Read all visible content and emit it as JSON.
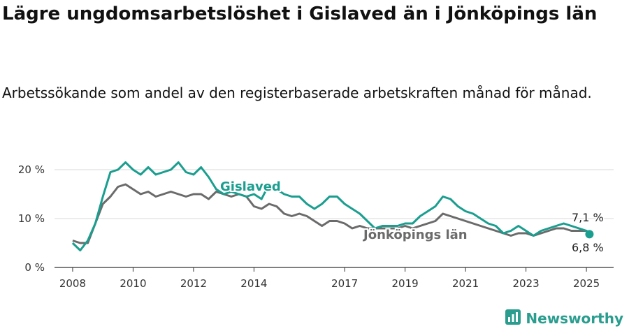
{
  "title": "Lägre ungdomsarbetslöshet i Gislaved än i Jönköpings län",
  "subtitle": "Arbetssökande som andel av den registerbaserade arbetskraften månad för månad.",
  "brand": {
    "name": "Newsworthy",
    "icon": "bar-chart-logo-icon"
  },
  "colors": {
    "gislaved": "#1a9e8f",
    "lan": "#6b6b6b",
    "grid": "#d9d9d9",
    "axis": "#333333"
  },
  "chart_data": {
    "type": "line",
    "title": "Lägre ungdomsarbetslöshet i Gislaved än i Jönköpings län",
    "ylabel": "",
    "xlabel": "",
    "ylim": [
      0,
      20
    ],
    "yticks": [
      0,
      10,
      20
    ],
    "ytick_labels": [
      "0 %",
      "10 %",
      "20 %"
    ],
    "xticks": [
      2008,
      2010,
      2012,
      2014,
      2017,
      2019,
      2021,
      2023,
      2025
    ],
    "xtick_labels": [
      "2008",
      "2010",
      "2012",
      "2014",
      "2017",
      "2019",
      "2021",
      "2023",
      "2025"
    ],
    "grid": true,
    "series": [
      {
        "name": "Gislaved",
        "end_label": "6,8 %",
        "x": [
          2008.0,
          2008.25,
          2008.5,
          2008.75,
          2009.0,
          2009.25,
          2009.5,
          2009.75,
          2010.0,
          2010.25,
          2010.5,
          2010.75,
          2011.0,
          2011.25,
          2011.5,
          2011.75,
          2012.0,
          2012.25,
          2012.5,
          2012.75,
          2013.0,
          2013.25,
          2013.5,
          2013.75,
          2014.0,
          2014.25,
          2014.5,
          2014.75,
          2015.0,
          2015.25,
          2015.5,
          2015.75,
          2016.0,
          2016.25,
          2016.5,
          2016.75,
          2017.0,
          2017.25,
          2017.5,
          2017.75,
          2018.0,
          2018.25,
          2018.5,
          2018.75,
          2019.0,
          2019.25,
          2019.5,
          2019.75,
          2020.0,
          2020.25,
          2020.5,
          2020.75,
          2021.0,
          2021.25,
          2021.5,
          2021.75,
          2022.0,
          2022.25,
          2022.5,
          2022.75,
          2023.0,
          2023.25,
          2023.5,
          2023.75,
          2024.0,
          2024.25,
          2024.5,
          2024.75,
          2025.0,
          2025.1
        ],
        "values": [
          5.0,
          3.5,
          5.5,
          9.0,
          14.5,
          19.5,
          20.0,
          21.5,
          20.0,
          19.0,
          20.5,
          19.0,
          19.5,
          20.0,
          21.5,
          19.5,
          19.0,
          20.5,
          18.5,
          16.0,
          15.0,
          15.5,
          15.0,
          14.5,
          15.0,
          14.0,
          17.0,
          16.0,
          15.0,
          14.5,
          14.5,
          13.0,
          12.0,
          13.0,
          14.5,
          14.5,
          13.0,
          12.0,
          11.0,
          9.5,
          8.0,
          8.5,
          8.5,
          8.5,
          9.0,
          9.0,
          10.5,
          11.5,
          12.5,
          14.5,
          14.0,
          12.5,
          11.5,
          11.0,
          10.0,
          9.0,
          8.5,
          7.0,
          7.5,
          8.5,
          7.5,
          6.5,
          7.5,
          8.0,
          8.5,
          9.0,
          8.5,
          8.0,
          7.5,
          6.8
        ]
      },
      {
        "name": "Jönköpings län",
        "end_label": "7,1 %",
        "x": [
          2008.0,
          2008.25,
          2008.5,
          2008.75,
          2009.0,
          2009.25,
          2009.5,
          2009.75,
          2010.0,
          2010.25,
          2010.5,
          2010.75,
          2011.0,
          2011.25,
          2011.5,
          2011.75,
          2012.0,
          2012.25,
          2012.5,
          2012.75,
          2013.0,
          2013.25,
          2013.5,
          2013.75,
          2014.0,
          2014.25,
          2014.5,
          2014.75,
          2015.0,
          2015.25,
          2015.5,
          2015.75,
          2016.0,
          2016.25,
          2016.5,
          2016.75,
          2017.0,
          2017.25,
          2017.5,
          2017.75,
          2018.0,
          2018.25,
          2018.5,
          2018.75,
          2019.0,
          2019.25,
          2019.5,
          2019.75,
          2020.0,
          2020.25,
          2020.5,
          2020.75,
          2021.0,
          2021.25,
          2021.5,
          2021.75,
          2022.0,
          2022.25,
          2022.5,
          2022.75,
          2023.0,
          2023.25,
          2023.5,
          2023.75,
          2024.0,
          2024.25,
          2024.5,
          2024.75,
          2025.0,
          2025.1
        ],
        "values": [
          5.5,
          5.0,
          5.0,
          9.0,
          13.0,
          14.5,
          16.5,
          17.0,
          16.0,
          15.0,
          15.5,
          14.5,
          15.0,
          15.5,
          15.0,
          14.5,
          15.0,
          15.0,
          14.0,
          15.5,
          15.0,
          14.5,
          15.0,
          14.5,
          12.5,
          12.0,
          13.0,
          12.5,
          11.0,
          10.5,
          11.0,
          10.5,
          9.5,
          8.5,
          9.5,
          9.5,
          9.0,
          8.0,
          8.5,
          8.0,
          8.0,
          8.0,
          8.0,
          8.0,
          8.5,
          8.0,
          8.5,
          9.0,
          9.5,
          11.0,
          10.5,
          10.0,
          9.5,
          9.0,
          8.5,
          8.0,
          7.5,
          7.0,
          6.5,
          7.0,
          7.0,
          6.5,
          7.0,
          7.5,
          8.0,
          8.0,
          7.5,
          7.5,
          7.5,
          7.1
        ]
      }
    ]
  }
}
